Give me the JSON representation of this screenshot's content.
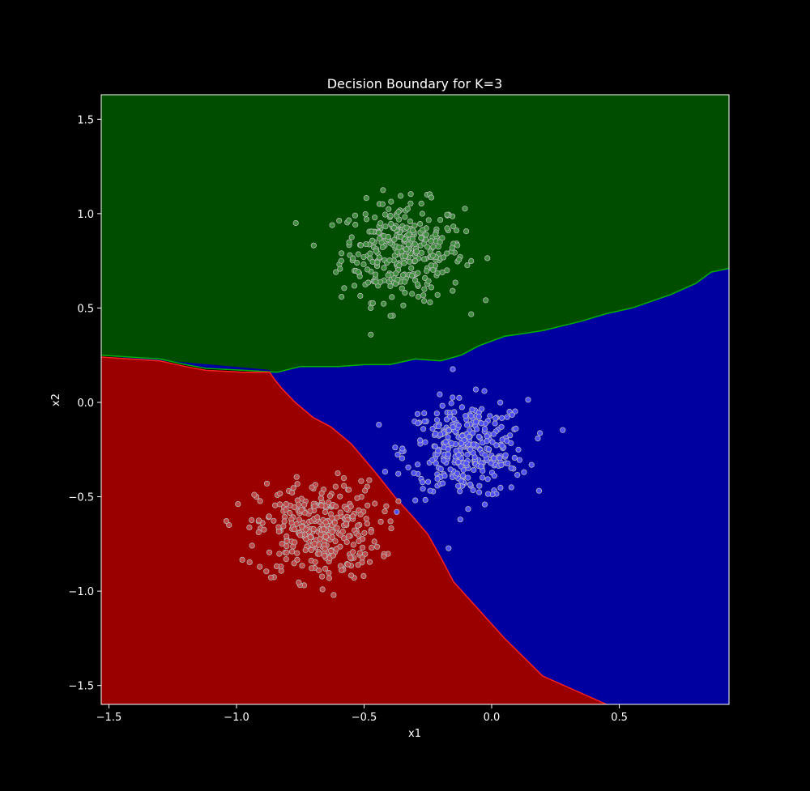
{
  "chart_data": {
    "type": "scatter",
    "title": "Decision Boundary for K=3",
    "xlabel": "x1",
    "ylabel": "x2",
    "xlim": [
      -1.53,
      0.93
    ],
    "ylim": [
      -1.6,
      1.63
    ],
    "x_ticks": [
      -1.5,
      -1.0,
      -0.5,
      0.0,
      0.5
    ],
    "x_tick_labels": [
      "−1.5",
      "−1.0",
      "−0.5",
      "0.0",
      "0.5"
    ],
    "y_ticks": [
      -1.5,
      -1.0,
      -0.5,
      0.0,
      0.5,
      1.0,
      1.5
    ],
    "y_tick_labels": [
      "−1.5",
      "−1.0",
      "−0.5",
      "0.0",
      "0.5",
      "1.0",
      "1.5"
    ],
    "grid": false,
    "background": "#000000",
    "regions": [
      {
        "class": "green",
        "color": "#004d00",
        "boundary": [
          [
            -1.53,
            1.63
          ],
          [
            0.93,
            1.63
          ],
          [
            0.93,
            0.71
          ],
          [
            0.86,
            0.69
          ],
          [
            0.8,
            0.63
          ],
          [
            0.7,
            0.57
          ],
          [
            0.55,
            0.5
          ],
          [
            0.45,
            0.47
          ],
          [
            0.35,
            0.43
          ],
          [
            0.2,
            0.38
          ],
          [
            0.05,
            0.35
          ],
          [
            -0.05,
            0.3
          ],
          [
            -0.12,
            0.25
          ],
          [
            -0.2,
            0.22
          ],
          [
            -0.3,
            0.23
          ],
          [
            -0.4,
            0.2
          ],
          [
            -0.5,
            0.2
          ],
          [
            -0.6,
            0.19
          ],
          [
            -0.75,
            0.19
          ],
          [
            -0.84,
            0.16
          ],
          [
            -0.97,
            0.17
          ],
          [
            -1.12,
            0.18
          ],
          [
            -1.2,
            0.2
          ],
          [
            -1.3,
            0.23
          ],
          [
            -1.53,
            0.25
          ]
        ]
      },
      {
        "class": "blue",
        "color": "#0000a0",
        "boundary": [
          [
            -1.53,
            0.25
          ],
          [
            -1.3,
            0.23
          ],
          [
            -1.2,
            0.2
          ],
          [
            -1.12,
            0.18
          ],
          [
            -0.97,
            0.17
          ],
          [
            -0.84,
            0.16
          ],
          [
            -0.75,
            0.19
          ],
          [
            -0.6,
            0.19
          ],
          [
            -0.5,
            0.2
          ],
          [
            -0.4,
            0.2
          ],
          [
            -0.3,
            0.23
          ],
          [
            -0.2,
            0.22
          ],
          [
            -0.12,
            0.25
          ],
          [
            -0.05,
            0.3
          ],
          [
            0.05,
            0.35
          ],
          [
            0.2,
            0.38
          ],
          [
            0.35,
            0.43
          ],
          [
            0.45,
            0.47
          ],
          [
            0.55,
            0.5
          ],
          [
            0.7,
            0.57
          ],
          [
            0.8,
            0.63
          ],
          [
            0.86,
            0.69
          ],
          [
            0.93,
            0.71
          ],
          [
            0.93,
            -1.6
          ],
          [
            0.45,
            -1.6
          ],
          [
            0.2,
            -1.45
          ],
          [
            0.05,
            -1.25
          ],
          [
            -0.05,
            -1.1
          ],
          [
            -0.15,
            -0.95
          ],
          [
            -0.2,
            -0.82
          ],
          [
            -0.25,
            -0.7
          ],
          [
            -0.3,
            -0.62
          ],
          [
            -0.38,
            -0.5
          ],
          [
            -0.45,
            -0.38
          ],
          [
            -0.55,
            -0.22
          ],
          [
            -0.63,
            -0.13
          ],
          [
            -0.7,
            -0.08
          ],
          [
            -0.77,
            0.0
          ],
          [
            -0.82,
            0.07
          ],
          [
            -0.85,
            0.12
          ],
          [
            -0.87,
            0.17
          ]
        ]
      },
      {
        "class": "red",
        "color": "#9b0000",
        "boundary": [
          [
            -1.53,
            0.24
          ],
          [
            -1.3,
            0.22
          ],
          [
            -1.2,
            0.19
          ],
          [
            -1.12,
            0.17
          ],
          [
            -0.97,
            0.16
          ],
          [
            -0.87,
            0.16
          ],
          [
            -0.85,
            0.12
          ],
          [
            -0.82,
            0.07
          ],
          [
            -0.77,
            0.0
          ],
          [
            -0.7,
            -0.08
          ],
          [
            -0.63,
            -0.13
          ],
          [
            -0.55,
            -0.22
          ],
          [
            -0.45,
            -0.38
          ],
          [
            -0.38,
            -0.5
          ],
          [
            -0.3,
            -0.62
          ],
          [
            -0.25,
            -0.7
          ],
          [
            -0.2,
            -0.82
          ],
          [
            -0.15,
            -0.95
          ],
          [
            -0.05,
            -1.1
          ],
          [
            0.05,
            -1.25
          ],
          [
            0.2,
            -1.45
          ],
          [
            0.45,
            -1.6
          ],
          [
            -1.53,
            -1.6
          ]
        ]
      }
    ],
    "series": [
      {
        "name": "green",
        "color": "#3f8f3f",
        "center": [
          -0.35,
          0.8
        ],
        "spread": [
          0.12,
          0.13
        ],
        "count": 330
      },
      {
        "name": "blue",
        "color": "#4f4fff",
        "center": [
          -0.1,
          -0.25
        ],
        "spread": [
          0.12,
          0.13
        ],
        "count": 330
      },
      {
        "name": "red",
        "color": "#c04a4a",
        "center": [
          -0.68,
          -0.68
        ],
        "spread": [
          0.12,
          0.13
        ],
        "count": 330
      }
    ]
  }
}
